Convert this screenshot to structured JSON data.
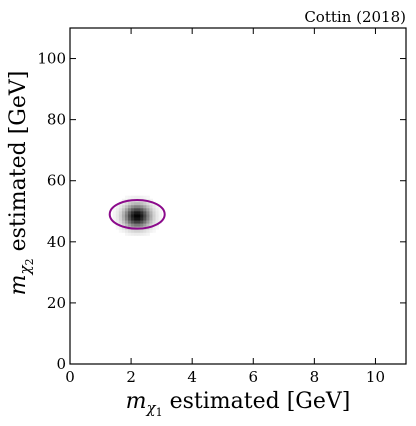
{
  "chart_data": {
    "type": "heatmap",
    "attribution": "Cottin (2018)",
    "xlabel": {
      "italic": "m",
      "sub": "χ",
      "subsub": "1",
      "rest": " estimated [GeV]"
    },
    "ylabel": {
      "italic": "m",
      "sub": "χ",
      "subsub": "2",
      "rest": " estimated [GeV]"
    },
    "xlim": [
      0,
      11
    ],
    "ylim": [
      0,
      110
    ],
    "xticks": [
      0,
      2,
      4,
      6,
      8,
      10
    ],
    "yticks": [
      0,
      20,
      40,
      60,
      80,
      100
    ],
    "peak": {
      "x": 2.2,
      "y": 48.5,
      "sigma_x": 0.3,
      "sigma_y": 2.6
    },
    "contour": {
      "cx": 2.2,
      "cy": 49,
      "rx": 0.9,
      "ry": 4.7,
      "color": "#8b0a8b"
    },
    "grid": false,
    "legend": "none"
  }
}
